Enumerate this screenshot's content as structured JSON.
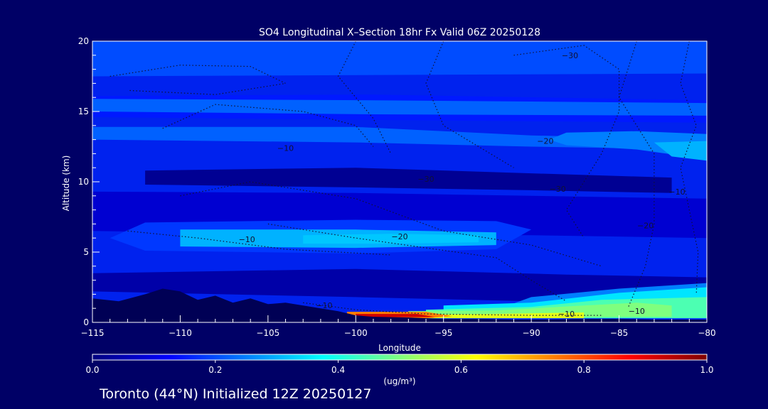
{
  "chart_data": {
    "type": "heatmap",
    "title": "SO4 Longitudinal X–Section 18hr  Fx Valid 06Z 20250128",
    "xlabel": "Longitude",
    "ylabel": "Altitude (km)",
    "xlim": [
      -115,
      -80
    ],
    "ylim": [
      0,
      20
    ],
    "x_ticks": [
      -115,
      -110,
      -105,
      -100,
      -95,
      -90,
      -85,
      -80
    ],
    "x_tick_labels": [
      "−115",
      "−110",
      "−105",
      "−100",
      "−95",
      "−90",
      "−85",
      "−80"
    ],
    "y_ticks": [
      0,
      5,
      10,
      15,
      20
    ],
    "y_tick_labels": [
      "0",
      "5",
      "10",
      "15",
      "20"
    ],
    "colorbar": {
      "min": 0.0,
      "max": 1.0,
      "ticks": [
        0.0,
        0.2,
        0.4,
        0.6,
        0.8,
        1.0
      ],
      "tick_labels": [
        "0.0",
        "0.2",
        "0.4",
        "0.6",
        "0.8",
        "1.0"
      ],
      "units_label": "(ug/m³)",
      "colors": [
        "#00007f",
        "#0000ff",
        "#007fff",
        "#00ffff",
        "#7fff7f",
        "#ffff00",
        "#ff7f00",
        "#ff0000",
        "#7f0000"
      ]
    },
    "terrain_km": [
      [
        -115,
        1.7
      ],
      [
        -113.5,
        1.5
      ],
      [
        -112,
        2.0
      ],
      [
        -111,
        2.4
      ],
      [
        -110,
        2.2
      ],
      [
        -109,
        1.6
      ],
      [
        -108,
        1.9
      ],
      [
        -107,
        1.4
      ],
      [
        -106,
        1.7
      ],
      [
        -105,
        1.3
      ],
      [
        -104,
        1.4
      ],
      [
        -103,
        1.2
      ],
      [
        -102,
        1.0
      ],
      [
        -101,
        0.8
      ],
      [
        -100,
        0.5
      ],
      [
        -99,
        0.4
      ],
      [
        -97,
        0.35
      ],
      [
        -95,
        0.25
      ],
      [
        -93,
        0.25
      ],
      [
        -91,
        0.2
      ],
      [
        -89,
        0.2
      ],
      [
        -87,
        0.25
      ],
      [
        -85,
        0.25
      ],
      [
        -83,
        0.2
      ],
      [
        -81,
        0.2
      ],
      [
        -80,
        0.2
      ]
    ],
    "concentration_bands": [
      {
        "value": 0.2,
        "polygon": [
          [
            -115,
            20
          ],
          [
            -80,
            20
          ],
          [
            -80,
            17.7
          ],
          [
            -115,
            17.5
          ]
        ]
      },
      {
        "value": 0.15,
        "polygon": [
          [
            -115,
            16.1
          ],
          [
            -99,
            16.2
          ],
          [
            -80,
            15.8
          ],
          [
            -80,
            14.2
          ],
          [
            -99,
            14.4
          ],
          [
            -115,
            14.6
          ]
        ]
      },
      {
        "value": 0.22,
        "polygon": [
          [
            -115,
            15.9
          ],
          [
            -99,
            15.8
          ],
          [
            -80,
            15.6
          ],
          [
            -80,
            14.7
          ],
          [
            -99,
            14.8
          ],
          [
            -115,
            15.0
          ]
        ]
      },
      {
        "value": 0.22,
        "polygon": [
          [
            -115,
            13.9
          ],
          [
            -100,
            13.9
          ],
          [
            -90,
            13.3
          ],
          [
            -80,
            13.0
          ],
          [
            -80,
            12.3
          ],
          [
            -90,
            12.5
          ],
          [
            -100,
            12.8
          ],
          [
            -115,
            13.0
          ]
        ]
      },
      {
        "value": 0.25,
        "polygon": [
          [
            -88,
            13.5
          ],
          [
            -84,
            13.6
          ],
          [
            -80,
            13.4
          ],
          [
            -80,
            11.6
          ],
          [
            -84,
            12.3
          ],
          [
            -88,
            12.6
          ],
          [
            -89,
            13.0
          ]
        ]
      },
      {
        "value": 0.3,
        "polygon": [
          [
            -83,
            12.8
          ],
          [
            -80,
            12.9
          ],
          [
            -80,
            11.5
          ],
          [
            -82,
            11.8
          ]
        ]
      },
      {
        "value": 0.02,
        "polygon": [
          [
            -112,
            10.8
          ],
          [
            -100,
            11.0
          ],
          [
            -90,
            10.6
          ],
          [
            -82,
            10.3
          ],
          [
            -82,
            9.2
          ],
          [
            -90,
            9.4
          ],
          [
            -100,
            9.6
          ],
          [
            -112,
            9.8
          ]
        ]
      },
      {
        "value": 0.08,
        "polygon": [
          [
            -115,
            9.3
          ],
          [
            -100,
            9.2
          ],
          [
            -90,
            9.0
          ],
          [
            -80,
            8.8
          ],
          [
            -80,
            6.0
          ],
          [
            -90,
            6.2
          ],
          [
            -100,
            6.2
          ],
          [
            -115,
            6.5
          ]
        ]
      },
      {
        "value": 0.18,
        "polygon": [
          [
            -112,
            7.1
          ],
          [
            -100,
            7.3
          ],
          [
            -92,
            7.2
          ],
          [
            -90,
            6.6
          ],
          [
            -92,
            5.2
          ],
          [
            -100,
            4.9
          ],
          [
            -112,
            5.1
          ],
          [
            -114,
            6.0
          ]
        ]
      },
      {
        "value": 0.3,
        "polygon": [
          [
            -110,
            6.6
          ],
          [
            -100,
            6.6
          ],
          [
            -92,
            6.4
          ],
          [
            -92,
            5.5
          ],
          [
            -100,
            5.3
          ],
          [
            -110,
            5.4
          ]
        ]
      },
      {
        "value": 0.32,
        "polygon": [
          [
            -103,
            6.2
          ],
          [
            -98,
            6.3
          ],
          [
            -93,
            6.2
          ],
          [
            -93,
            5.7
          ],
          [
            -98,
            5.6
          ],
          [
            -103,
            5.6
          ]
        ]
      },
      {
        "value": 0.04,
        "polygon": [
          [
            -115,
            3.5
          ],
          [
            -100,
            3.8
          ],
          [
            -88,
            3.4
          ],
          [
            -80,
            3.2
          ],
          [
            -80,
            1.6
          ],
          [
            -90,
            1.5
          ],
          [
            -100,
            1.8
          ],
          [
            -115,
            2.2
          ]
        ]
      },
      {
        "value": 0.25,
        "polygon": [
          [
            -90,
            1.8
          ],
          [
            -85,
            2.4
          ],
          [
            -80,
            2.8
          ],
          [
            -80,
            0.4
          ],
          [
            -90,
            0.4
          ],
          [
            -92,
            0.9
          ]
        ]
      },
      {
        "value": 0.35,
        "polygon": [
          [
            -95,
            1.2
          ],
          [
            -90,
            1.4
          ],
          [
            -85,
            2.1
          ],
          [
            -80,
            2.5
          ],
          [
            -80,
            0.3
          ],
          [
            -95,
            0.3
          ]
        ]
      },
      {
        "value": 0.45,
        "polygon": [
          [
            -96,
            0.9
          ],
          [
            -90,
            1.1
          ],
          [
            -86,
            1.6
          ],
          [
            -80,
            1.8
          ],
          [
            -80,
            0.3
          ],
          [
            -96,
            0.3
          ]
        ]
      },
      {
        "value": 0.5,
        "polygon": [
          [
            -97,
            0.8
          ],
          [
            -92,
            0.85
          ],
          [
            -87,
            1.2
          ],
          [
            -84,
            1.4
          ],
          [
            -82,
            1.2
          ],
          [
            -82,
            0.4
          ],
          [
            -97,
            0.35
          ]
        ]
      },
      {
        "value": 0.6,
        "polygon": [
          [
            -96,
            0.55
          ],
          [
            -92,
            0.6
          ],
          [
            -87,
            0.7
          ],
          [
            -87,
            0.3
          ],
          [
            -96,
            0.3
          ]
        ]
      },
      {
        "value": 0.75,
        "polygon": [
          [
            -100.5,
            0.75
          ],
          [
            -96,
            0.75
          ],
          [
            -94.5,
            0.45
          ],
          [
            -96,
            0.3
          ],
          [
            -100.5,
            0.3
          ]
        ]
      },
      {
        "value": 0.92,
        "polygon": [
          [
            -100,
            0.6
          ],
          [
            -96.5,
            0.6
          ],
          [
            -95.5,
            0.38
          ],
          [
            -100,
            0.36
          ]
        ]
      }
    ],
    "contour_labels": [
      {
        "text": "−30",
        "x": -87.8,
        "y": 18.8
      },
      {
        "text": "−10",
        "x": -104,
        "y": 12.2
      },
      {
        "text": "−20",
        "x": -89.2,
        "y": 12.7
      },
      {
        "text": "−30",
        "x": -96,
        "y": 10.0
      },
      {
        "text": "−30",
        "x": -88.5,
        "y": 9.3
      },
      {
        "text": "−10",
        "x": -81.7,
        "y": 9.1
      },
      {
        "text": "−20",
        "x": -83.5,
        "y": 6.7
      },
      {
        "text": "−10",
        "x": -106.2,
        "y": 5.7
      },
      {
        "text": "−20",
        "x": -97.5,
        "y": 5.9
      },
      {
        "text": "−10",
        "x": -101.8,
        "y": 1.0
      },
      {
        "text": "−10",
        "x": -88,
        "y": 0.4
      },
      {
        "text": "−10",
        "x": -84,
        "y": 0.6
      }
    ],
    "contour_lines": [
      {
        "points": [
          [
            -114,
            17.5
          ],
          [
            -110,
            18.3
          ],
          [
            -106,
            18.2
          ],
          [
            -104,
            17.0
          ],
          [
            -108,
            16.2
          ],
          [
            -113,
            16.5
          ]
        ]
      },
      {
        "points": [
          [
            -111,
            13.8
          ],
          [
            -108,
            15.5
          ],
          [
            -103,
            15.0
          ],
          [
            -100,
            14.0
          ],
          [
            -99,
            12.5
          ]
        ]
      },
      {
        "points": [
          [
            -100,
            20
          ],
          [
            -101,
            17.5
          ],
          [
            -99,
            14.5
          ],
          [
            -98,
            12.0
          ]
        ]
      },
      {
        "points": [
          [
            -95,
            20
          ],
          [
            -96,
            17.0
          ],
          [
            -95,
            14.0
          ],
          [
            -91,
            11.0
          ]
        ]
      },
      {
        "points": [
          [
            -91,
            19.0
          ],
          [
            -87,
            19.7
          ],
          [
            -85,
            18.0
          ],
          [
            -85,
            15.0
          ],
          [
            -86,
            12.0
          ],
          [
            -88,
            8.0
          ],
          [
            -87,
            6.0
          ]
        ]
      },
      {
        "points": [
          [
            -81,
            20
          ],
          [
            -81.5,
            17.0
          ],
          [
            -80.6,
            14.0
          ],
          [
            -81.5,
            11.0
          ],
          [
            -81,
            8.0
          ],
          [
            -80.5,
            5.0
          ],
          [
            -80.6,
            2.0
          ]
        ]
      },
      {
        "points": [
          [
            -84,
            20
          ],
          [
            -85,
            16.0
          ],
          [
            -83,
            12.0
          ],
          [
            -83,
            7.0
          ],
          [
            -83.5,
            4.0
          ],
          [
            -84.5,
            1.0
          ]
        ]
      },
      {
        "points": [
          [
            -110,
            9.0
          ],
          [
            -106,
            10.0
          ],
          [
            -100,
            8.8
          ],
          [
            -95,
            6.5
          ],
          [
            -90,
            5.5
          ],
          [
            -86,
            4.0
          ]
        ]
      },
      {
        "points": [
          [
            -105,
            7.0
          ],
          [
            -100,
            6.0
          ],
          [
            -96,
            5.3
          ],
          [
            -92,
            4.6
          ],
          [
            -90,
            3.0
          ],
          [
            -88,
            1.5
          ]
        ]
      },
      {
        "points": [
          [
            -113,
            6.5
          ],
          [
            -109,
            6.0
          ],
          [
            -104,
            5.2
          ],
          [
            -98,
            4.8
          ]
        ]
      },
      {
        "points": [
          [
            -103,
            1.4
          ],
          [
            -100,
            0.9
          ],
          [
            -96,
            0.6
          ],
          [
            -90,
            0.5
          ],
          [
            -86,
            0.5
          ]
        ]
      }
    ]
  },
  "footer_text": "Toronto (44°N) Initialized 12Z 20250127"
}
